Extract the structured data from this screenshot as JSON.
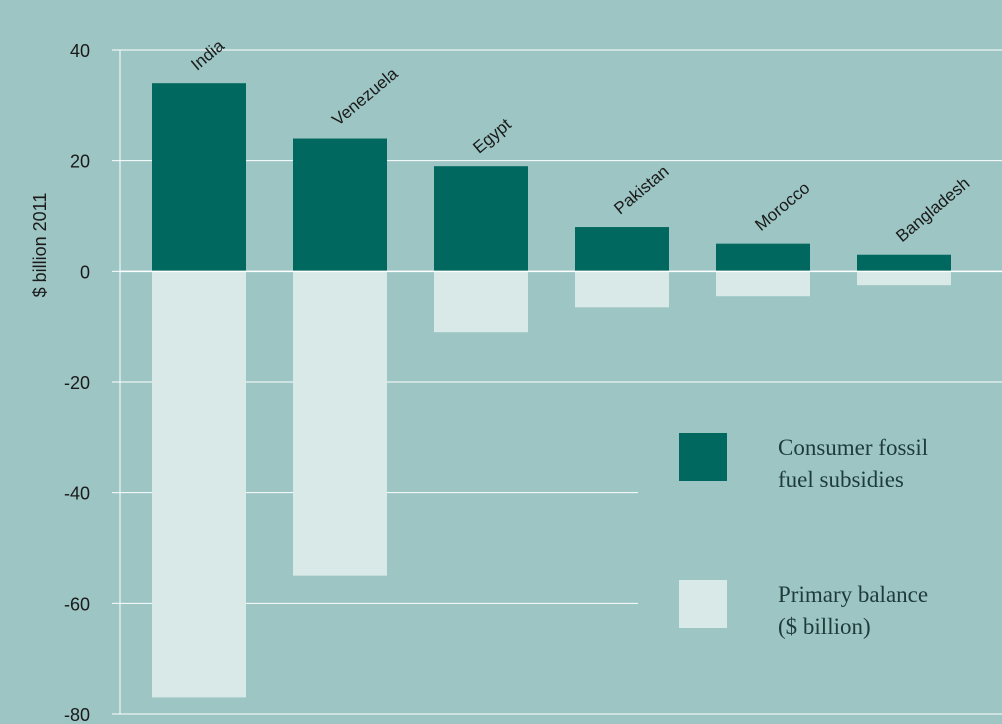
{
  "chart_data": {
    "type": "bar",
    "categories": [
      "India",
      "Venezuela",
      "Egypt",
      "Pakistan",
      "Morocco",
      "Bangladesh"
    ],
    "series": [
      {
        "name": "Consumer fossil fuel subsidies",
        "values": [
          34,
          24,
          19,
          8,
          5,
          3
        ]
      },
      {
        "name": "Primary balance ($ billion)",
        "values": [
          -77,
          -55,
          -11,
          -6.5,
          -4.5,
          -2.5
        ]
      }
    ],
    "ylabel": "$ billion 2011",
    "ylim": [
      -80,
      40
    ],
    "yticks": [
      40,
      20,
      0,
      -20,
      -40,
      -60,
      -80
    ],
    "legend": {
      "position": "right",
      "items": [
        {
          "lines": [
            "Consumer fossil",
            "fuel subsidies"
          ]
        },
        {
          "lines": [
            "Primary balance",
            "($ billion)"
          ]
        }
      ]
    },
    "grid": true,
    "colors": {
      "background": "#9cc5c3",
      "subsidies": "#00685f",
      "balance": "#d8e9e8",
      "grid": "#ffffff"
    }
  }
}
